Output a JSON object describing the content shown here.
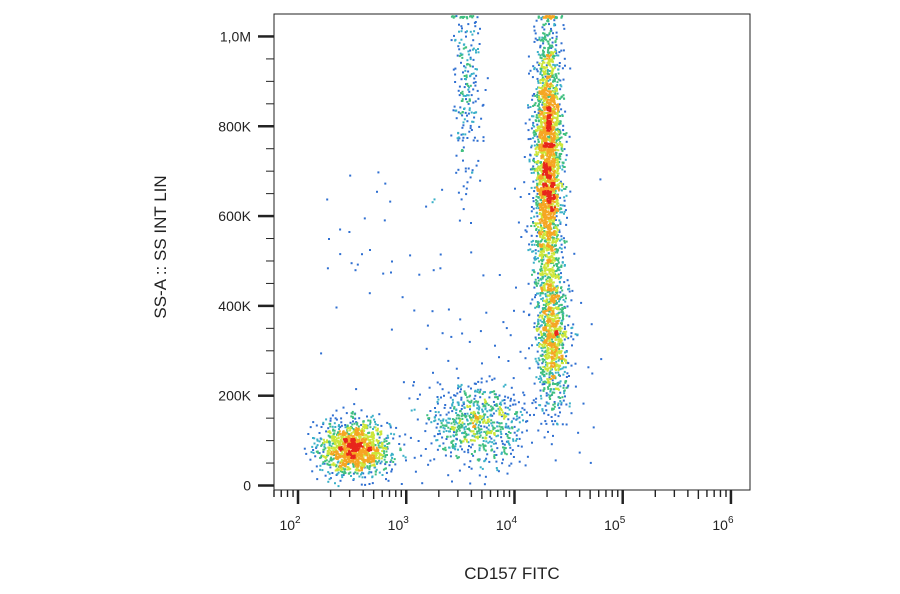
{
  "chart_data": {
    "type": "scatter",
    "plot_style": "flow cytometry density dot plot",
    "title": "",
    "xlabel": "CD157 FITC",
    "ylabel": "SS-A :: SS INT LIN",
    "x_scale": "log",
    "xlim": [
      60,
      1500000
    ],
    "x_ticks": [
      {
        "value": 100,
        "base": "10",
        "exp": "2"
      },
      {
        "value": 1000,
        "base": "10",
        "exp": "3"
      },
      {
        "value": 10000,
        "base": "10",
        "exp": "4"
      },
      {
        "value": 100000,
        "base": "10",
        "exp": "5"
      },
      {
        "value": 1000000,
        "base": "10",
        "exp": "6"
      }
    ],
    "y_scale": "linear",
    "ylim": [
      -10000,
      1050000
    ],
    "y_ticks": [
      {
        "value": 0,
        "label": "0"
      },
      {
        "value": 200000,
        "label": "200K"
      },
      {
        "value": 400000,
        "label": "400K"
      },
      {
        "value": 600000,
        "label": "600K"
      },
      {
        "value": 800000,
        "label": "800K"
      },
      {
        "value": 1000000,
        "label": "1,0M"
      }
    ],
    "grid": false,
    "legend": "none",
    "density_colors": [
      "#1f3b9e",
      "#2f6fd1",
      "#3ab0c8",
      "#3fbf7f",
      "#cde63a",
      "#f5a623",
      "#e8261c"
    ],
    "populations": [
      {
        "cx": 330,
        "cy": 85000,
        "sx": 0.16,
        "sy": 30000,
        "n": 1300
      },
      {
        "cx": 20000,
        "cy": 720000,
        "sx": 0.065,
        "sy": 150000,
        "n": 2600
      },
      {
        "cx": 22000,
        "cy": 330000,
        "sx": 0.075,
        "sy": 80000,
        "n": 900
      },
      {
        "cx": 4500,
        "cy": 140000,
        "sx": 0.22,
        "sy": 45000,
        "n": 700
      },
      {
        "cx": 3500,
        "cy": 880000,
        "sx": 0.07,
        "sy": 110000,
        "n": 220
      }
    ]
  }
}
